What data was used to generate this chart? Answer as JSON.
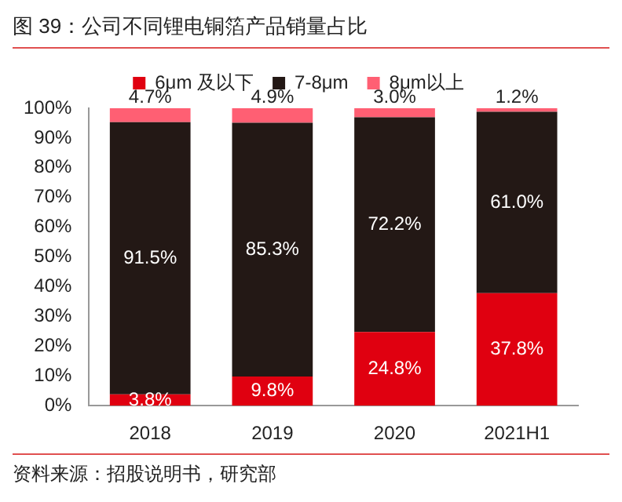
{
  "chart_data": {
    "type": "bar",
    "title": "图 39：公司不同锂电铜箔产品销量占比",
    "categories": [
      "2018",
      "2019",
      "2020",
      "2021H1"
    ],
    "stacked": true,
    "series": [
      {
        "name": "6μm 及以下",
        "color": "#e00010",
        "values": [
          3.8,
          9.8,
          24.8,
          37.8
        ],
        "value_labels": [
          "3.8%",
          "9.8%",
          "24.8%",
          "37.8%"
        ]
      },
      {
        "name": "7-8μm",
        "color": "#231815",
        "values": [
          91.5,
          85.3,
          72.2,
          61.0
        ],
        "value_labels": [
          "91.5%",
          "85.3%",
          "72.2%",
          "61.0%"
        ]
      },
      {
        "name": "8μm以上",
        "color": "#ff5f73",
        "values": [
          4.7,
          4.9,
          3.0,
          1.2
        ],
        "value_labels": [
          "4.7%",
          "4.9%",
          "3.0%",
          "1.2%"
        ]
      }
    ],
    "ylim": [
      0,
      100
    ],
    "yticks": [
      {
        "value": 0,
        "label": "0%"
      },
      {
        "value": 10,
        "label": "10%"
      },
      {
        "value": 20,
        "label": "20%"
      },
      {
        "value": 30,
        "label": "30%"
      },
      {
        "value": 40,
        "label": "40%"
      },
      {
        "value": 50,
        "label": "50%"
      },
      {
        "value": 60,
        "label": "60%"
      },
      {
        "value": 70,
        "label": "70%"
      },
      {
        "value": 80,
        "label": "80%"
      },
      {
        "value": 90,
        "label": "90%"
      },
      {
        "value": 100,
        "label": "100%"
      }
    ],
    "grid": false,
    "legend": "top",
    "annotations": [
      "资料来源：招股说明书，研究部"
    ]
  }
}
